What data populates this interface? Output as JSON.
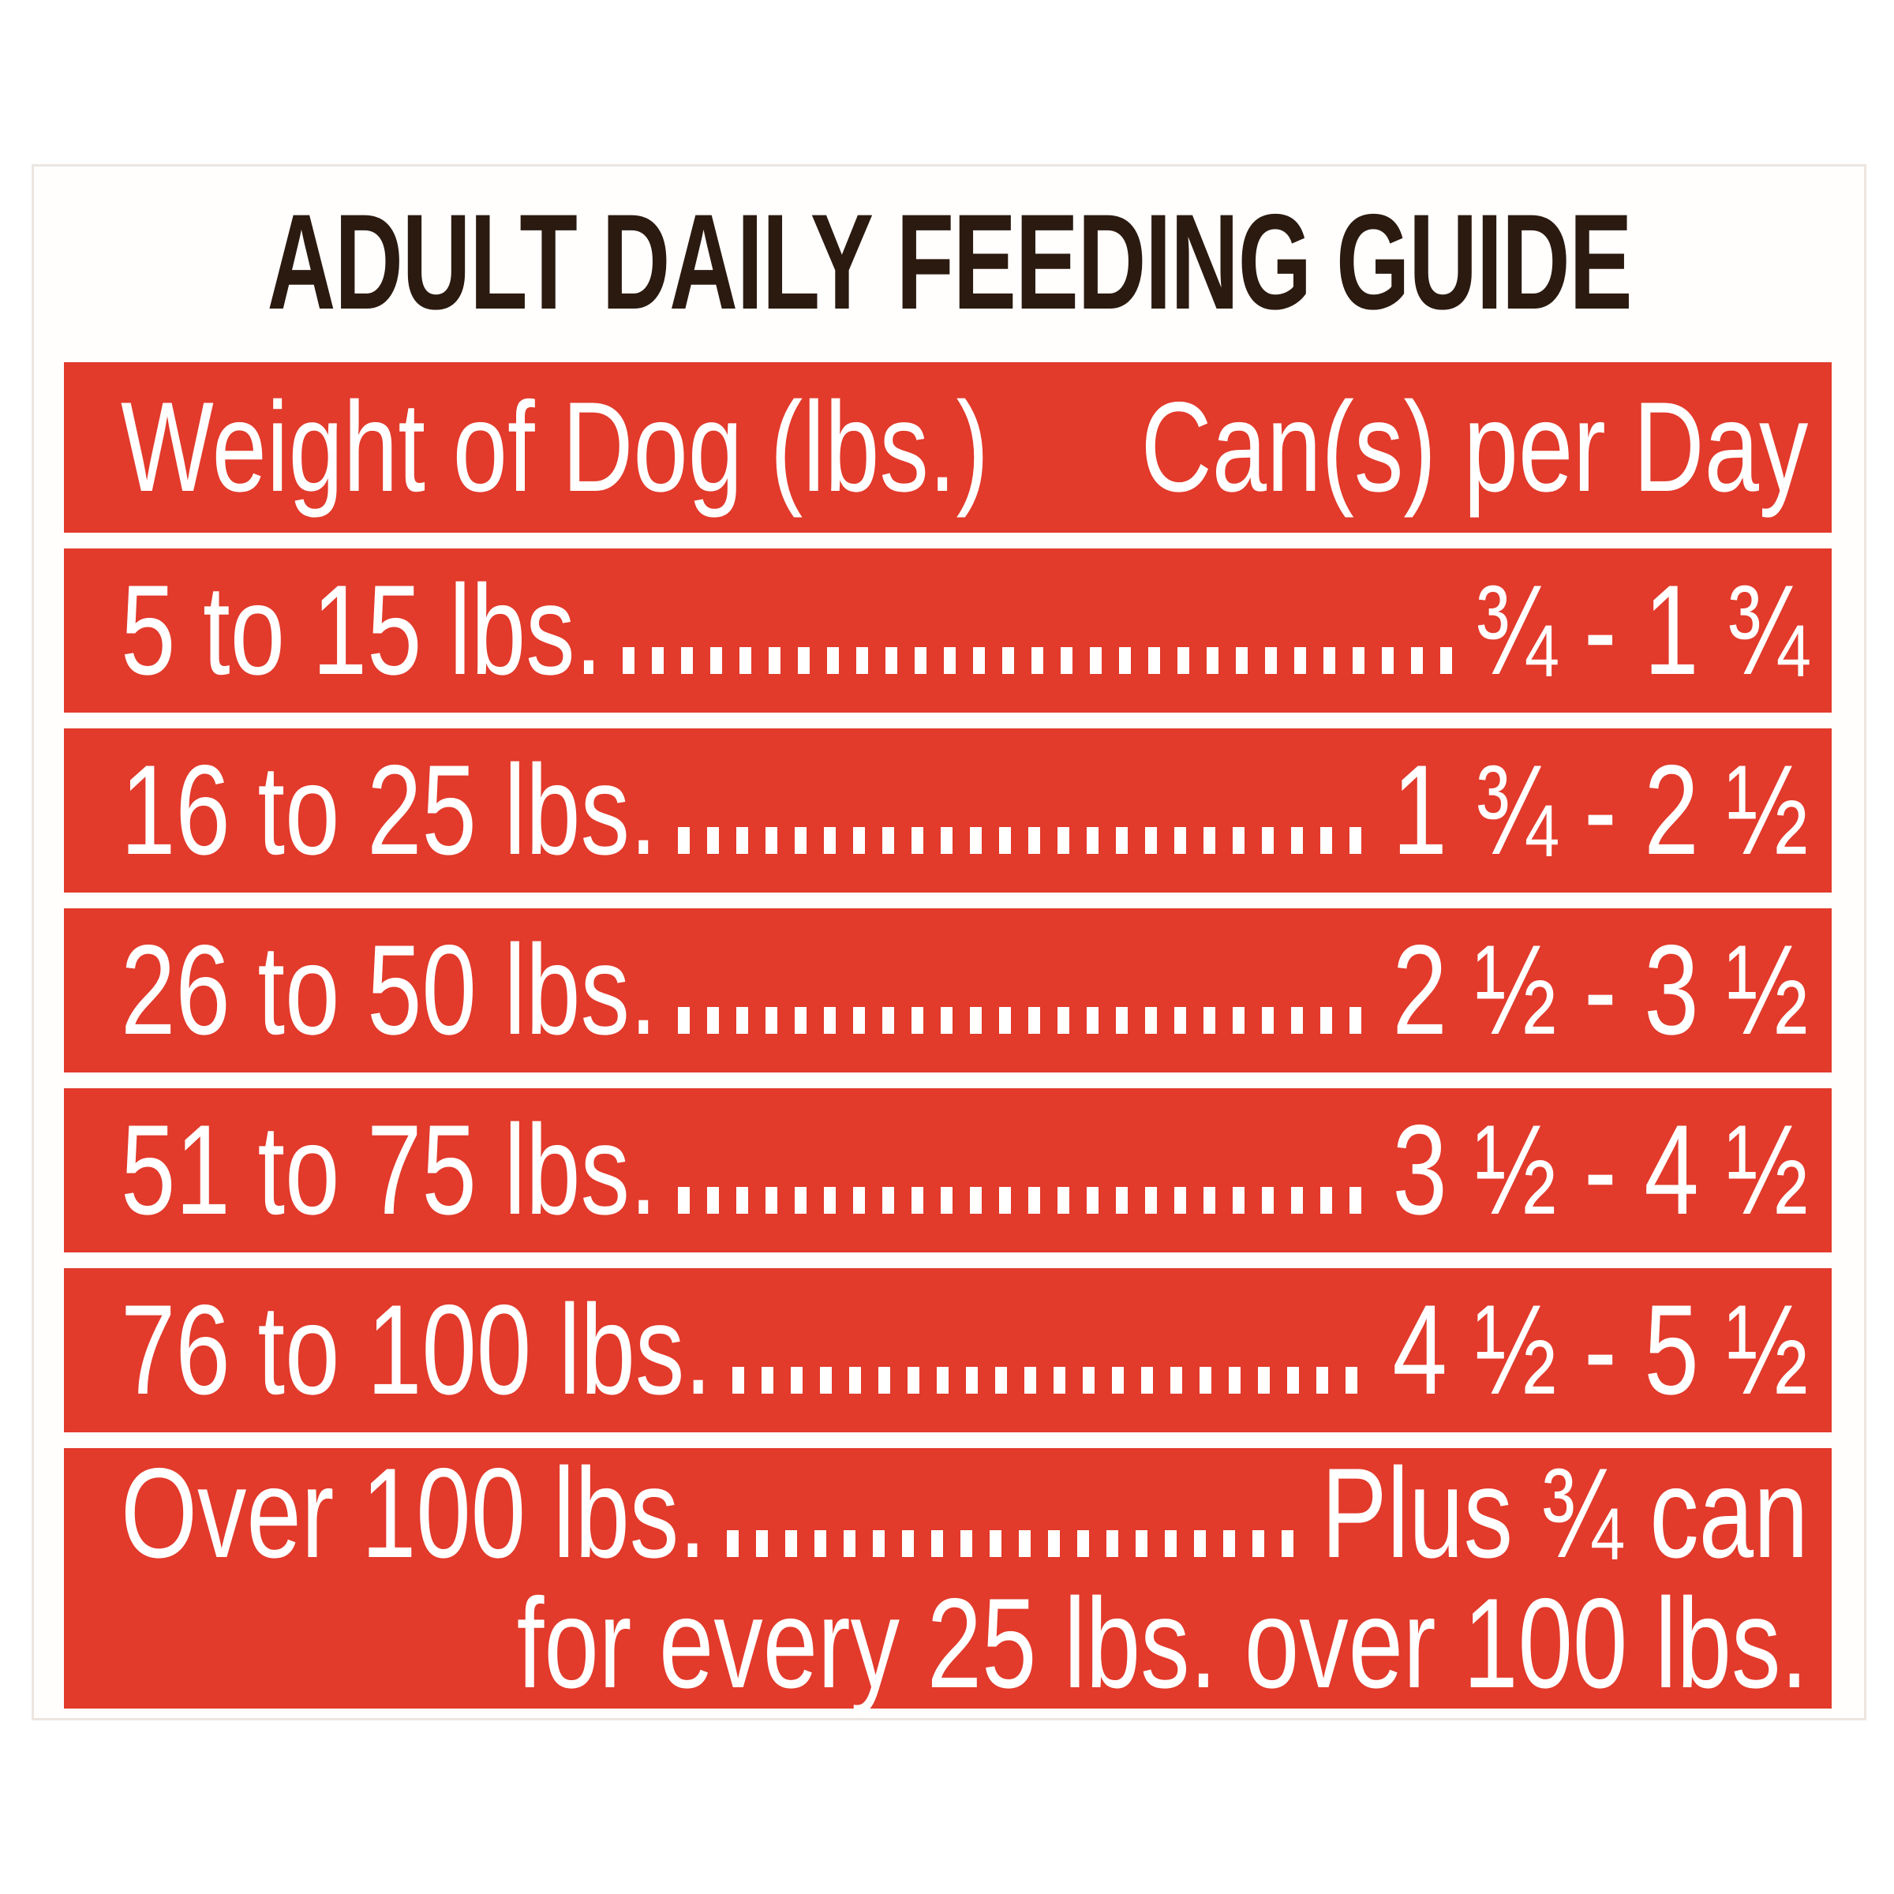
{
  "title": "ADULT DAILY FEEDING GUIDE",
  "colors": {
    "band_red": "#e23a2b",
    "title_ink": "#2b1a10",
    "text_white": "#ffffff",
    "page_bg": "#ffffff"
  },
  "table": {
    "header": {
      "weight_col": "Weight of Dog (lbs.)",
      "cans_col": "Can(s) per Day"
    },
    "rows": [
      {
        "weight": "5 to 15 lbs.",
        "cans": "¾ - 1 ¾"
      },
      {
        "weight": "16 to 25 lbs.",
        "cans": "1 ¾ - 2 ½"
      },
      {
        "weight": "26 to 50 lbs.",
        "cans": "2 ½ - 3 ½"
      },
      {
        "weight": "51 to 75 lbs.",
        "cans": "3 ½ - 4 ½"
      },
      {
        "weight": "76 to 100 lbs.",
        "cans": "4 ½ - 5 ½"
      },
      {
        "weight": "Over 100 lbs.",
        "cans": "Plus ¾ can",
        "cans_note": "for every 25 lbs. over 100 lbs."
      }
    ]
  }
}
